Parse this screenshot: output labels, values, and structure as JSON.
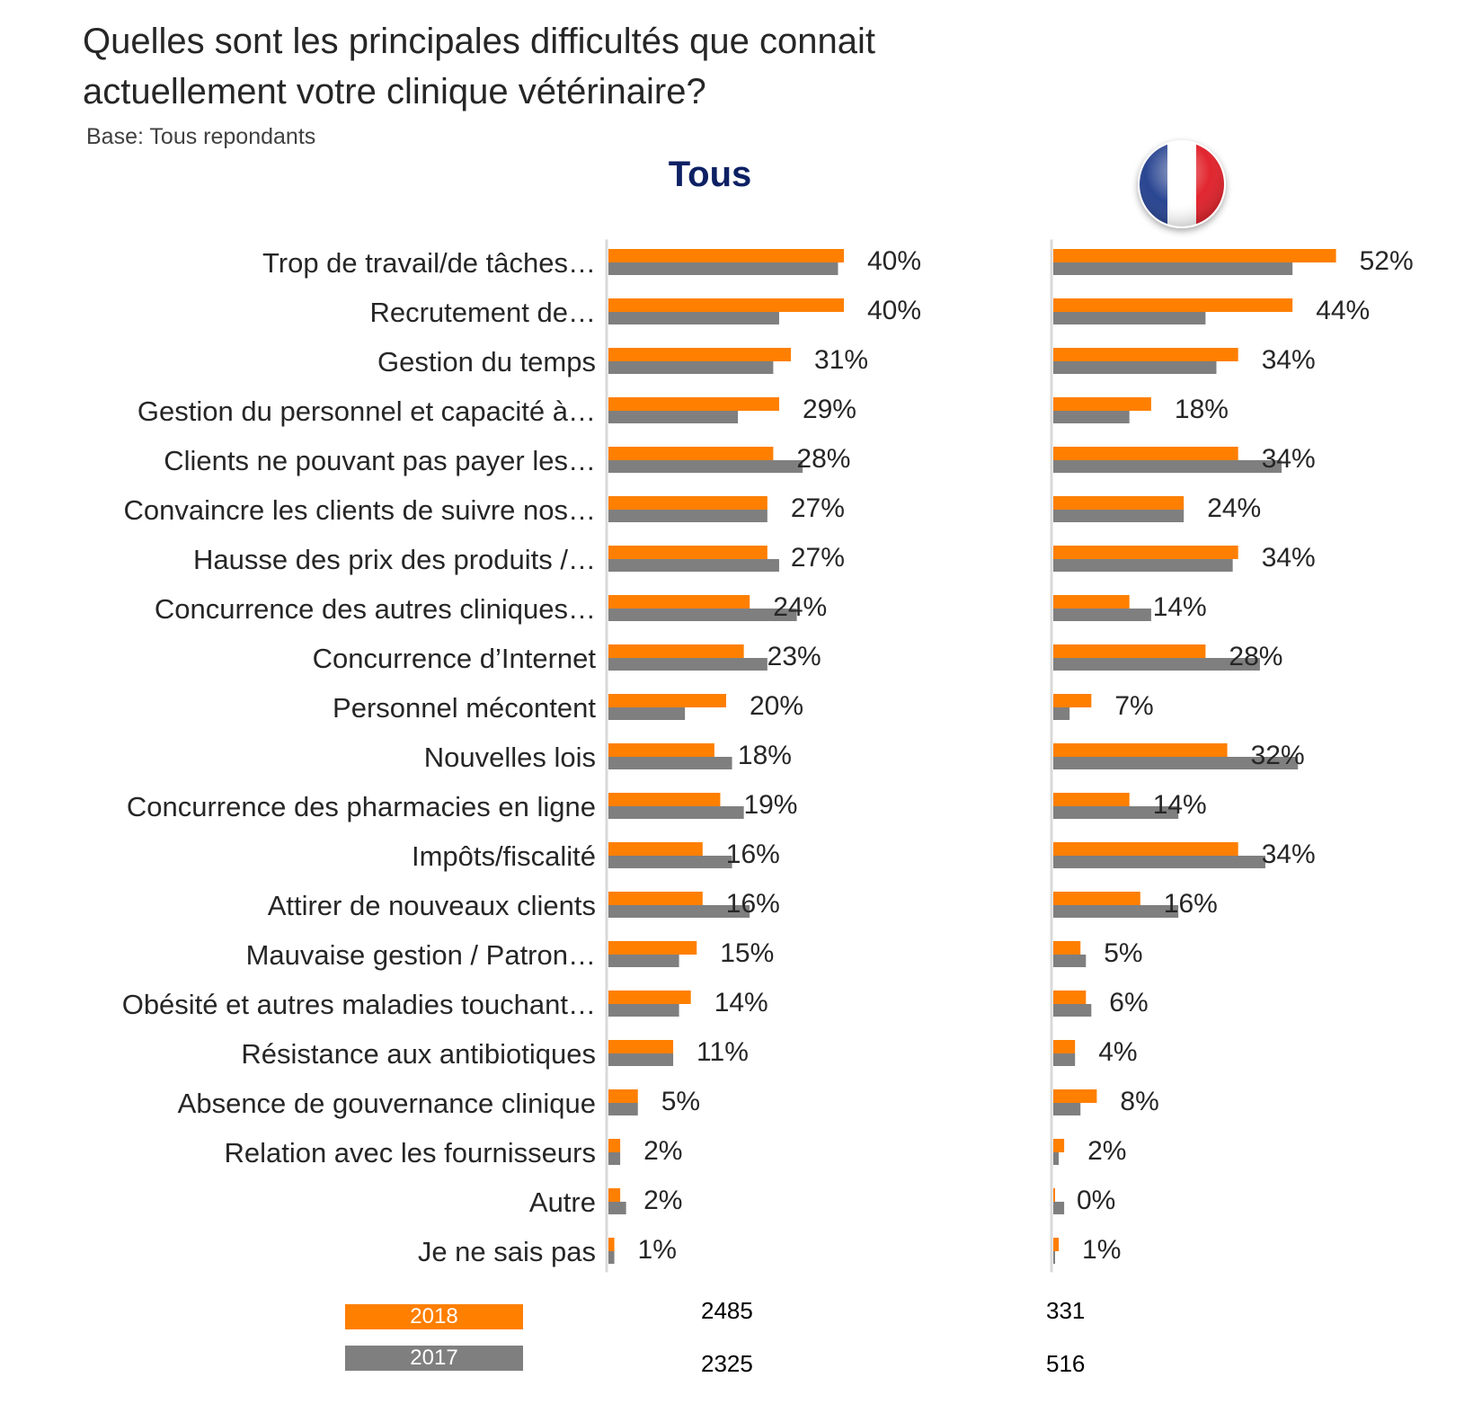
{
  "title_line1": "Quelles sont les principales difficultés que connait",
  "title_line2": "actuellement votre clinique vétérinaire?",
  "base": "Base: Tous repondants",
  "panels": [
    {
      "title": "Tous",
      "flag": "",
      "n_2018": "2485",
      "n_2017": "2325"
    },
    {
      "title": "",
      "flag": "france-flag-icon",
      "n_2018": "331",
      "n_2017": "516"
    }
  ],
  "colors": {
    "series_2018": "#ff7f00",
    "series_2017": "#7f7f7f",
    "axis": "#d9d9d9"
  },
  "legend": [
    {
      "label": "2018",
      "color": "#ff7f00"
    },
    {
      "label": "2017",
      "color": "#7f7f7f"
    }
  ],
  "chart_data": [
    {
      "type": "bar",
      "orientation": "horizontal",
      "title": "Tous",
      "categories": [
        "Trop de travail/de tâches…",
        "Recrutement de…",
        "Gestion du temps",
        "Gestion du personnel et capacité à…",
        "Clients ne pouvant pas payer les…",
        "Convaincre les clients de suivre nos…",
        "Hausse des prix des produits /…",
        "Concurrence des autres cliniques…",
        "Concurrence d’Internet",
        "Personnel mécontent",
        "Nouvelles lois",
        "Concurrence des pharmacies en ligne",
        "Impôts/fiscalité",
        "Attirer de nouveaux clients",
        "Mauvaise gestion / Patron…",
        "Obésité et autres maladies touchant…",
        "Résistance aux antibiotiques",
        "Absence de gouvernance clinique",
        "Relation avec les fournisseurs",
        "Autre",
        "Je ne sais pas"
      ],
      "series": [
        {
          "name": "2018",
          "values": [
            40,
            40,
            31,
            29,
            28,
            27,
            27,
            24,
            23,
            20,
            18,
            19,
            16,
            16,
            15,
            14,
            11,
            5,
            2,
            2,
            1
          ]
        },
        {
          "name": "2017",
          "values": [
            39,
            29,
            28,
            22,
            33,
            27,
            29,
            32,
            27,
            13,
            21,
            23,
            21,
            24,
            12,
            12,
            11,
            5,
            2,
            3,
            1
          ]
        }
      ],
      "data_labels": [
        "40%",
        "40%",
        "31%",
        "29%",
        "28%",
        "27%",
        "27%",
        "24%",
        "23%",
        "20%",
        "18%",
        "19%",
        "16%",
        "16%",
        "15%",
        "14%",
        "11%",
        "5%",
        "2%",
        "2%",
        "1%"
      ],
      "xlim": [
        0,
        100
      ],
      "grid": false
    },
    {
      "type": "bar",
      "orientation": "horizontal",
      "title": "",
      "categories": [
        "Trop de travail/de tâches…",
        "Recrutement de…",
        "Gestion du temps",
        "Gestion du personnel et capacité à…",
        "Clients ne pouvant pas payer les…",
        "Convaincre les clients de suivre nos…",
        "Hausse des prix des produits /…",
        "Concurrence des autres cliniques…",
        "Concurrence d’Internet",
        "Personnel mécontent",
        "Nouvelles lois",
        "Concurrence des pharmacies en ligne",
        "Impôts/fiscalité",
        "Attirer de nouveaux clients",
        "Mauvaise gestion / Patron…",
        "Obésité et autres maladies touchant…",
        "Résistance aux antibiotiques",
        "Absence de gouvernance clinique",
        "Relation avec les fournisseurs",
        "Autre",
        "Je ne sais pas"
      ],
      "series": [
        {
          "name": "2018",
          "values": [
            52,
            44,
            34,
            18,
            34,
            24,
            34,
            14,
            28,
            7,
            32,
            14,
            34,
            16,
            5,
            6,
            4,
            8,
            2,
            0,
            1
          ]
        },
        {
          "name": "2017",
          "values": [
            44,
            28,
            30,
            14,
            42,
            24,
            33,
            18,
            38,
            3,
            45,
            23,
            39,
            23,
            6,
            7,
            4,
            5,
            1,
            2,
            0
          ]
        }
      ],
      "data_labels": [
        "52%",
        "44%",
        "34%",
        "18%",
        "34%",
        "24%",
        "34%",
        "14%",
        "28%",
        "7%",
        "32%",
        "14%",
        "34%",
        "16%",
        "5%",
        "6%",
        "4%",
        "8%",
        "2%",
        "0%",
        "1%"
      ],
      "xlim": [
        0,
        100
      ],
      "grid": false
    }
  ]
}
